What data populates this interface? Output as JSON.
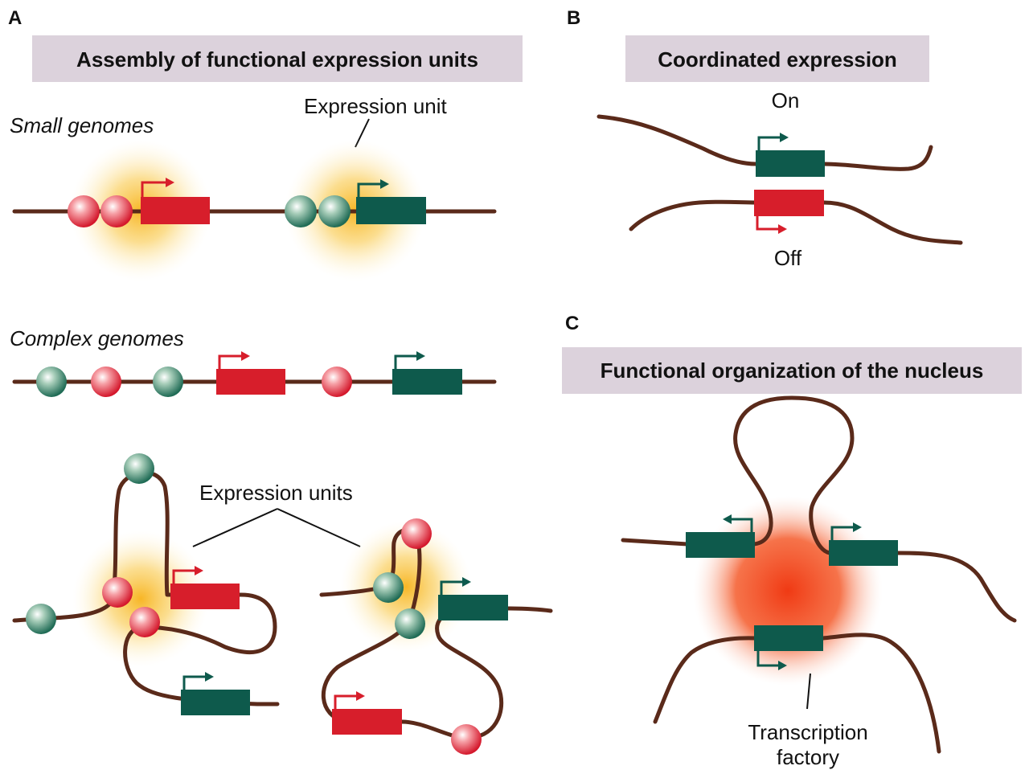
{
  "panels": {
    "a": {
      "letter": "A",
      "banner": "Assembly of functional expression units",
      "small_genomes": "Small genomes",
      "expression_unit": "Expression unit",
      "complex_genomes": "Complex genomes",
      "expression_units": "Expression units"
    },
    "b": {
      "letter": "B",
      "banner": "Coordinated expression",
      "on": "On",
      "off": "Off"
    },
    "c": {
      "letter": "C",
      "banner": "Functional organization of the nucleus",
      "factory_line1": "Transcription",
      "factory_line2": "factory"
    }
  },
  "colors": {
    "dna": "#5a2a1a",
    "red_gene": "#d71e2b",
    "green_gene": "#0e5a4c",
    "banner": "#dcd2dc",
    "glow_yellow": "#f7b21a",
    "glow_red": "#f24a1a"
  }
}
